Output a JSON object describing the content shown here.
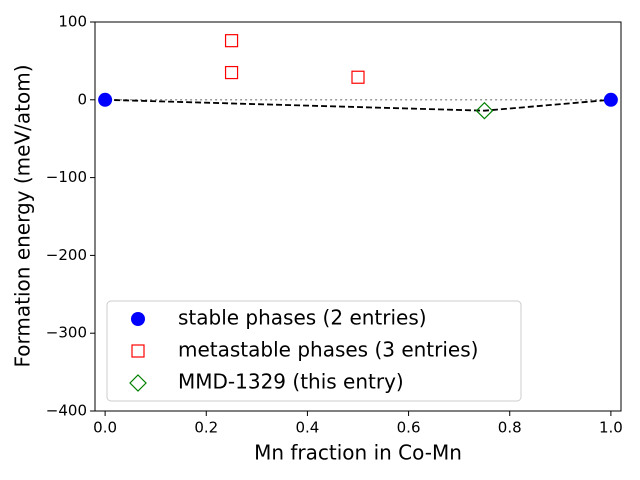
{
  "chart_data": {
    "type": "scatter",
    "x_label": "Mn fraction in Co-Mn",
    "y_label": "Formation energy (meV/atom)",
    "xlim": [
      -0.02,
      1.02
    ],
    "ylim": [
      -400,
      100
    ],
    "xticks": [
      {
        "value": 0,
        "label": "0.0"
      },
      0.2,
      0.4,
      0.6,
      0.8,
      {
        "value": 1,
        "label": "1.0"
      }
    ],
    "yticks": [
      {
        "value": -400,
        "label": "−400"
      },
      {
        "value": -300,
        "label": "−300"
      },
      {
        "value": -200,
        "label": "−200"
      },
      {
        "value": -100,
        "label": "−100"
      },
      0,
      100
    ],
    "series": [
      {
        "name": "stable phases (2 entries)",
        "color": "#0000ff",
        "marker": "circle",
        "x": [
          0,
          1
        ],
        "values": [
          0,
          0
        ]
      },
      {
        "name": "metastable phases (3 entries)",
        "color": "#ff0000",
        "marker": "square",
        "x": [
          0.25,
          0.25,
          0.5
        ],
        "values": [
          76,
          35,
          29
        ]
      },
      {
        "name": "MMD-1329 (this entry)",
        "color": "#008000",
        "marker": "diamond",
        "x": [
          0.75
        ],
        "values": [
          -14
        ]
      }
    ],
    "hull": {
      "x": [
        0,
        0.75,
        1
      ],
      "values": [
        0,
        -14,
        0
      ],
      "color": "#000000"
    },
    "baseline": {
      "x": [
        0,
        1
      ],
      "values": [
        0,
        0
      ],
      "color": "#999999"
    },
    "legend": "lower left"
  }
}
